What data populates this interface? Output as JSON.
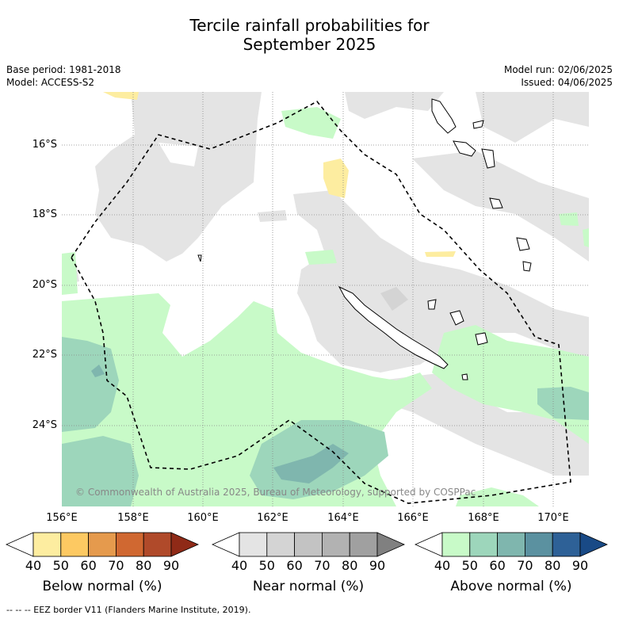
{
  "title_line1": "Tercile rainfall probabilities for",
  "title_line2": "September 2025",
  "base_period": "Base period: 1981-2018",
  "model": "Model: ACCESS-S2",
  "model_run": "Model run: 02/06/2025",
  "issued": "Issued: 04/06/2025",
  "lat_labels": [
    "16°S",
    "18°S",
    "20°S",
    "22°S",
    "24°S"
  ],
  "lon_labels": [
    "156°E",
    "158°E",
    "160°E",
    "162°E",
    "164°E",
    "166°E",
    "168°E",
    "170°E"
  ],
  "copyright": "© Commonwealth of Australia 2025, Bureau of Meteorology, supported by COSPPac",
  "colorbars": [
    {
      "label": "Below normal (%)",
      "ticks": [
        "40",
        "50",
        "60",
        "70",
        "80",
        "90"
      ],
      "colors": [
        "#ffffff",
        "#fdeda0",
        "#fdc962",
        "#e59a4d",
        "#d06831",
        "#b04a2a",
        "#8f2a17"
      ]
    },
    {
      "label": "Near normal (%)",
      "ticks": [
        "40",
        "50",
        "60",
        "70",
        "80",
        "90"
      ],
      "colors": [
        "#ffffff",
        "#e4e4e4",
        "#d4d4d4",
        "#c3c3c3",
        "#b2b2b2",
        "#a0a0a0",
        "#808080"
      ]
    },
    {
      "label": "Above normal (%)",
      "ticks": [
        "40",
        "50",
        "60",
        "70",
        "80",
        "90"
      ],
      "colors": [
        "#ffffff",
        "#c8fac8",
        "#9dd6bb",
        "#7fb6ae",
        "#5b91a0",
        "#2e6197",
        "#194a86"
      ]
    }
  ],
  "footer": "--  --  -- EEZ border V11 (Flanders Marine Institute, 2019)."
}
